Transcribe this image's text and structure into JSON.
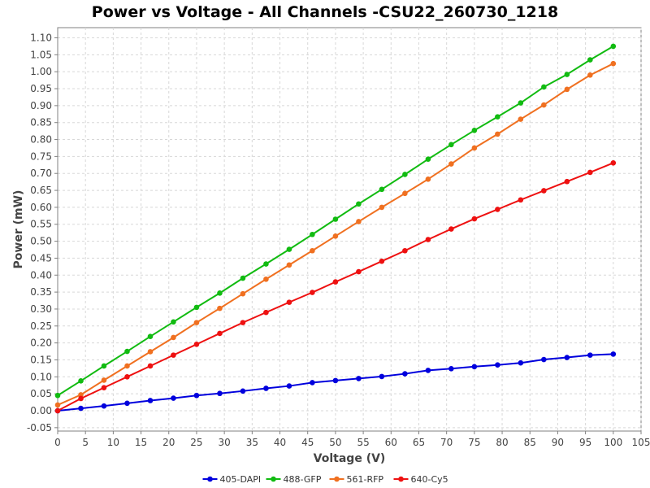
{
  "chart_data": {
    "type": "line",
    "title": "Power vs Voltage - All Channels -CSU22_260730_1218",
    "xlabel": "Voltage (V)",
    "ylabel": "Power (mW)",
    "xlim": [
      0,
      105
    ],
    "ylim": [
      -0.06,
      1.13
    ],
    "xticks": [
      0,
      5,
      10,
      15,
      20,
      25,
      30,
      35,
      40,
      45,
      50,
      55,
      60,
      65,
      70,
      75,
      80,
      85,
      90,
      95,
      100,
      105
    ],
    "yticks": [
      -0.05,
      0.0,
      0.05,
      0.1,
      0.15,
      0.2,
      0.25,
      0.3,
      0.35,
      0.4,
      0.45,
      0.5,
      0.55,
      0.6,
      0.65,
      0.7,
      0.75,
      0.8,
      0.85,
      0.9,
      0.95,
      1.0,
      1.05,
      1.1
    ],
    "grid": true,
    "legend_position": "bottom",
    "x": [
      0,
      4.17,
      8.33,
      12.5,
      16.67,
      20.83,
      25,
      29.17,
      33.33,
      37.5,
      41.67,
      45.83,
      50,
      54.17,
      58.33,
      62.5,
      66.67,
      70.83,
      75,
      79.17,
      83.33,
      87.5,
      91.67,
      95.83,
      100
    ],
    "series": [
      {
        "name": "405-DAPI",
        "color": "#0000dd",
        "values": [
          0.0,
          0.007,
          0.014,
          0.022,
          0.03,
          0.037,
          0.045,
          0.051,
          0.058,
          0.066,
          0.073,
          0.083,
          0.089,
          0.095,
          0.101,
          0.109,
          0.119,
          0.124,
          0.13,
          0.135,
          0.141,
          0.151,
          0.157,
          0.164,
          0.167
        ]
      },
      {
        "name": "488-GFP",
        "color": "#11bb11",
        "values": [
          0.045,
          0.088,
          0.132,
          0.175,
          0.219,
          0.262,
          0.305,
          0.347,
          0.391,
          0.433,
          0.476,
          0.52,
          0.565,
          0.61,
          0.653,
          0.697,
          0.742,
          0.785,
          0.827,
          0.867,
          0.908,
          0.955,
          0.992,
          1.035,
          1.075
        ]
      },
      {
        "name": "561-RFP",
        "color": "#f07020",
        "values": [
          0.017,
          0.047,
          0.09,
          0.132,
          0.174,
          0.216,
          0.26,
          0.302,
          0.345,
          0.388,
          0.43,
          0.472,
          0.515,
          0.558,
          0.6,
          0.641,
          0.683,
          0.728,
          0.775,
          0.816,
          0.86,
          0.902,
          0.948,
          0.99,
          1.024
        ]
      },
      {
        "name": "640-Cy5",
        "color": "#ee1111",
        "values": [
          0.0,
          0.036,
          0.068,
          0.1,
          0.132,
          0.164,
          0.196,
          0.228,
          0.26,
          0.29,
          0.32,
          0.349,
          0.38,
          0.41,
          0.441,
          0.472,
          0.505,
          0.536,
          0.566,
          0.594,
          0.622,
          0.649,
          0.676,
          0.703,
          0.731
        ]
      }
    ]
  }
}
